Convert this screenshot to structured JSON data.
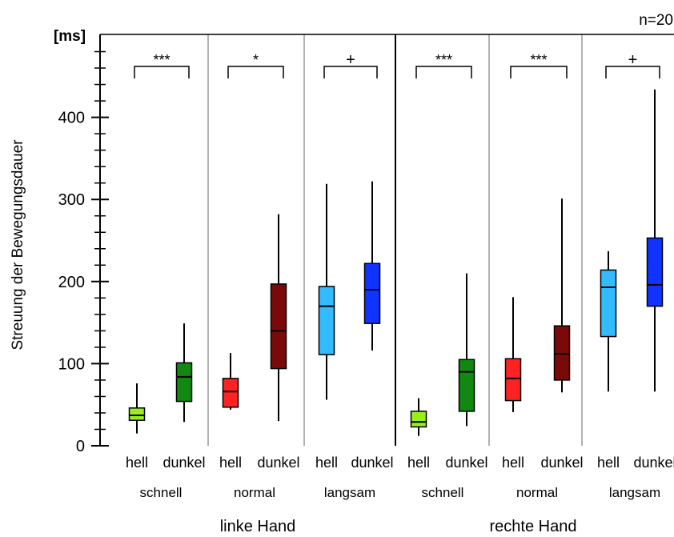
{
  "chart_data": {
    "type": "box",
    "n_label": "n=20",
    "unit_label": "[ms]",
    "ylabel": "Streuung der Bewegungsdauer",
    "ylim": [
      0,
      500
    ],
    "yticks": [
      0,
      100,
      200,
      300,
      400
    ],
    "hands": [
      "linke Hand",
      "rechte Hand"
    ],
    "speeds": [
      "schnell",
      "normal",
      "langsam",
      "schnell",
      "normal",
      "langsam"
    ],
    "significance": [
      "***",
      "*",
      "+",
      "***",
      "***",
      "+"
    ],
    "boxes": [
      {
        "label": "hell",
        "color": "#99ee22",
        "min": 15,
        "q1": 31,
        "median": 37,
        "q3": 46,
        "max": 76
      },
      {
        "label": "dunkel",
        "color": "#118811",
        "min": 29,
        "q1": 54,
        "median": 84,
        "q3": 101,
        "max": 149
      },
      {
        "label": "hell",
        "color": "#ff2222",
        "min": 44,
        "q1": 47,
        "median": 66,
        "q3": 82,
        "max": 113
      },
      {
        "label": "dunkel",
        "color": "#7a0a0a",
        "min": 30,
        "q1": 94,
        "median": 140,
        "q3": 197,
        "max": 282
      },
      {
        "label": "hell",
        "color": "#33bbff",
        "min": 56,
        "q1": 111,
        "median": 170,
        "q3": 194,
        "max": 319
      },
      {
        "label": "dunkel",
        "color": "#1133ff",
        "min": 116,
        "q1": 149,
        "median": 190,
        "q3": 222,
        "max": 322
      },
      {
        "label": "hell",
        "color": "#99ee22",
        "min": 12,
        "q1": 23,
        "median": 29,
        "q3": 42,
        "max": 58
      },
      {
        "label": "dunkel",
        "color": "#118811",
        "min": 24,
        "q1": 42,
        "median": 90,
        "q3": 105,
        "max": 210
      },
      {
        "label": "hell",
        "color": "#ff2222",
        "min": 41,
        "q1": 55,
        "median": 82,
        "q3": 106,
        "max": 181
      },
      {
        "label": "dunkel",
        "color": "#7a0a0a",
        "min": 65,
        "q1": 80,
        "median": 112,
        "q3": 146,
        "max": 301
      },
      {
        "label": "hell",
        "color": "#33bbff",
        "min": 66,
        "q1": 133,
        "median": 193,
        "q3": 214,
        "max": 237
      },
      {
        "label": "dunkel",
        "color": "#1133ff",
        "min": 66,
        "q1": 170,
        "median": 196,
        "q3": 253,
        "max": 434
      }
    ]
  }
}
